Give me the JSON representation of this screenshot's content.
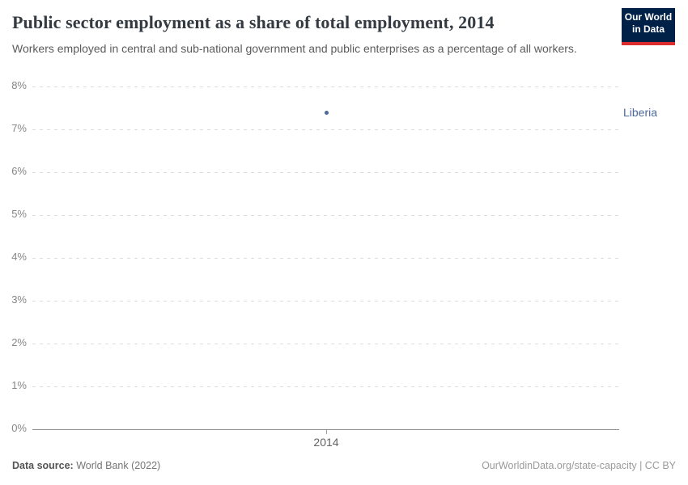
{
  "header": {
    "title": "Public sector employment as a share of total employment, 2014",
    "subtitle": "Workers employed in central and sub-national government and public enterprises as a percentage of all workers.",
    "logo": {
      "line1": "Our World",
      "line2": "in Data",
      "bg_color": "#002147",
      "accent_color": "#dc2e2e"
    }
  },
  "chart_data": {
    "type": "scatter",
    "title": "Public sector employment as a share of total employment, 2014",
    "series": [
      {
        "name": "Liberia",
        "x": [
          2014
        ],
        "values": [
          7.38
        ]
      }
    ],
    "xticks": [
      "2014"
    ],
    "ylim": [
      0,
      8
    ],
    "ytick_step": 1,
    "ytick_suffix": "%",
    "ytick_labels": [
      "0%",
      "1%",
      "2%",
      "3%",
      "4%",
      "5%",
      "6%",
      "7%",
      "8%"
    ],
    "grid": "horizontal-dashed",
    "legend_position": "right-of-plot",
    "point_color": "#4c6a9c",
    "entity_label_color": "#4c6a9c"
  },
  "footer": {
    "source_label": "Data source:",
    "source_value": "World Bank (2022)",
    "credit": "OurWorldinData.org/state-capacity | CC BY"
  }
}
